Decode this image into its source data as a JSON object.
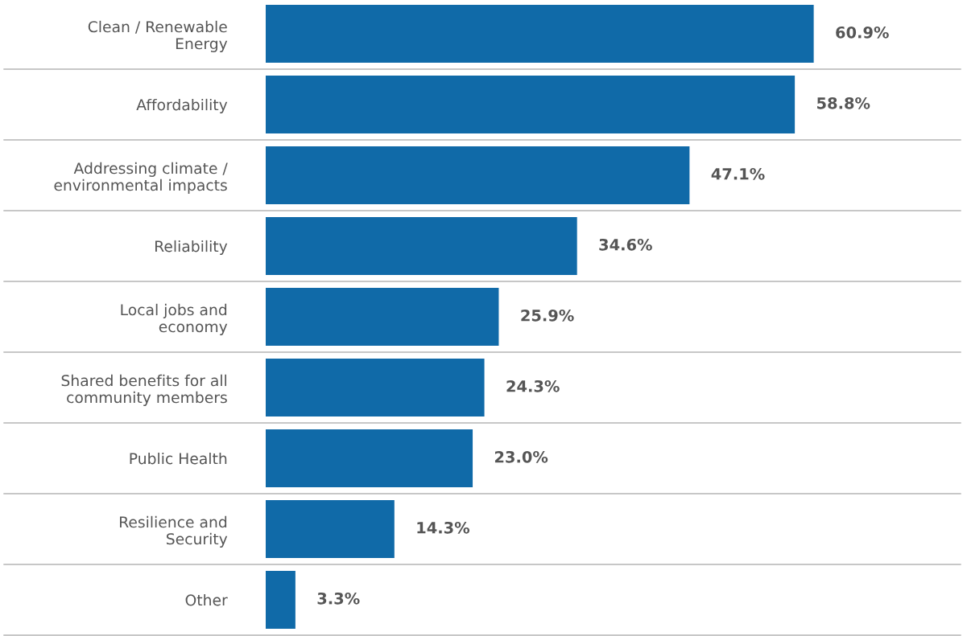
{
  "chart_data": {
    "type": "bar",
    "orientation": "horizontal",
    "categories": [
      "Clean / Renewable\nEnergy",
      "Affordability",
      "Addressing climate /\nenvironmental impacts",
      "Reliability",
      "Local jobs and\neconomy",
      "Shared benefits for all\ncommunity members",
      "Public Health",
      "Resilience and\nSecurity",
      "Other"
    ],
    "values": [
      60.9,
      58.8,
      47.1,
      34.6,
      25.9,
      24.3,
      23.0,
      14.3,
      3.3
    ],
    "value_labels": [
      "60.9%",
      "58.8%",
      "47.1%",
      "34.6%",
      "25.9%",
      "24.3%",
      "23.0%",
      "14.3%",
      "3.3%"
    ],
    "color": "#106aa8",
    "grid": "y",
    "legend": false
  }
}
